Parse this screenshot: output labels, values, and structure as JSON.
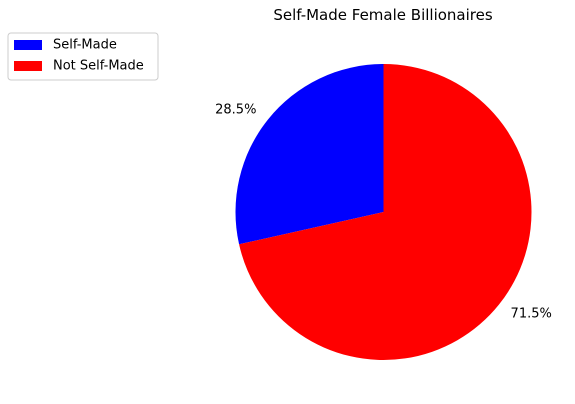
{
  "chart_data": {
    "type": "pie",
    "title": "Self-Made Female Billionaires",
    "start_angle_deg": 90,
    "direction": "counterclockwise",
    "legend_position": "top-left",
    "slices": [
      {
        "label": "Self-Made",
        "value": 28.5,
        "pct_label": "28.5%",
        "color": "#0000ff"
      },
      {
        "label": "Not Self-Made",
        "value": 71.5,
        "pct_label": "71.5%",
        "color": "#ff0000"
      }
    ]
  }
}
